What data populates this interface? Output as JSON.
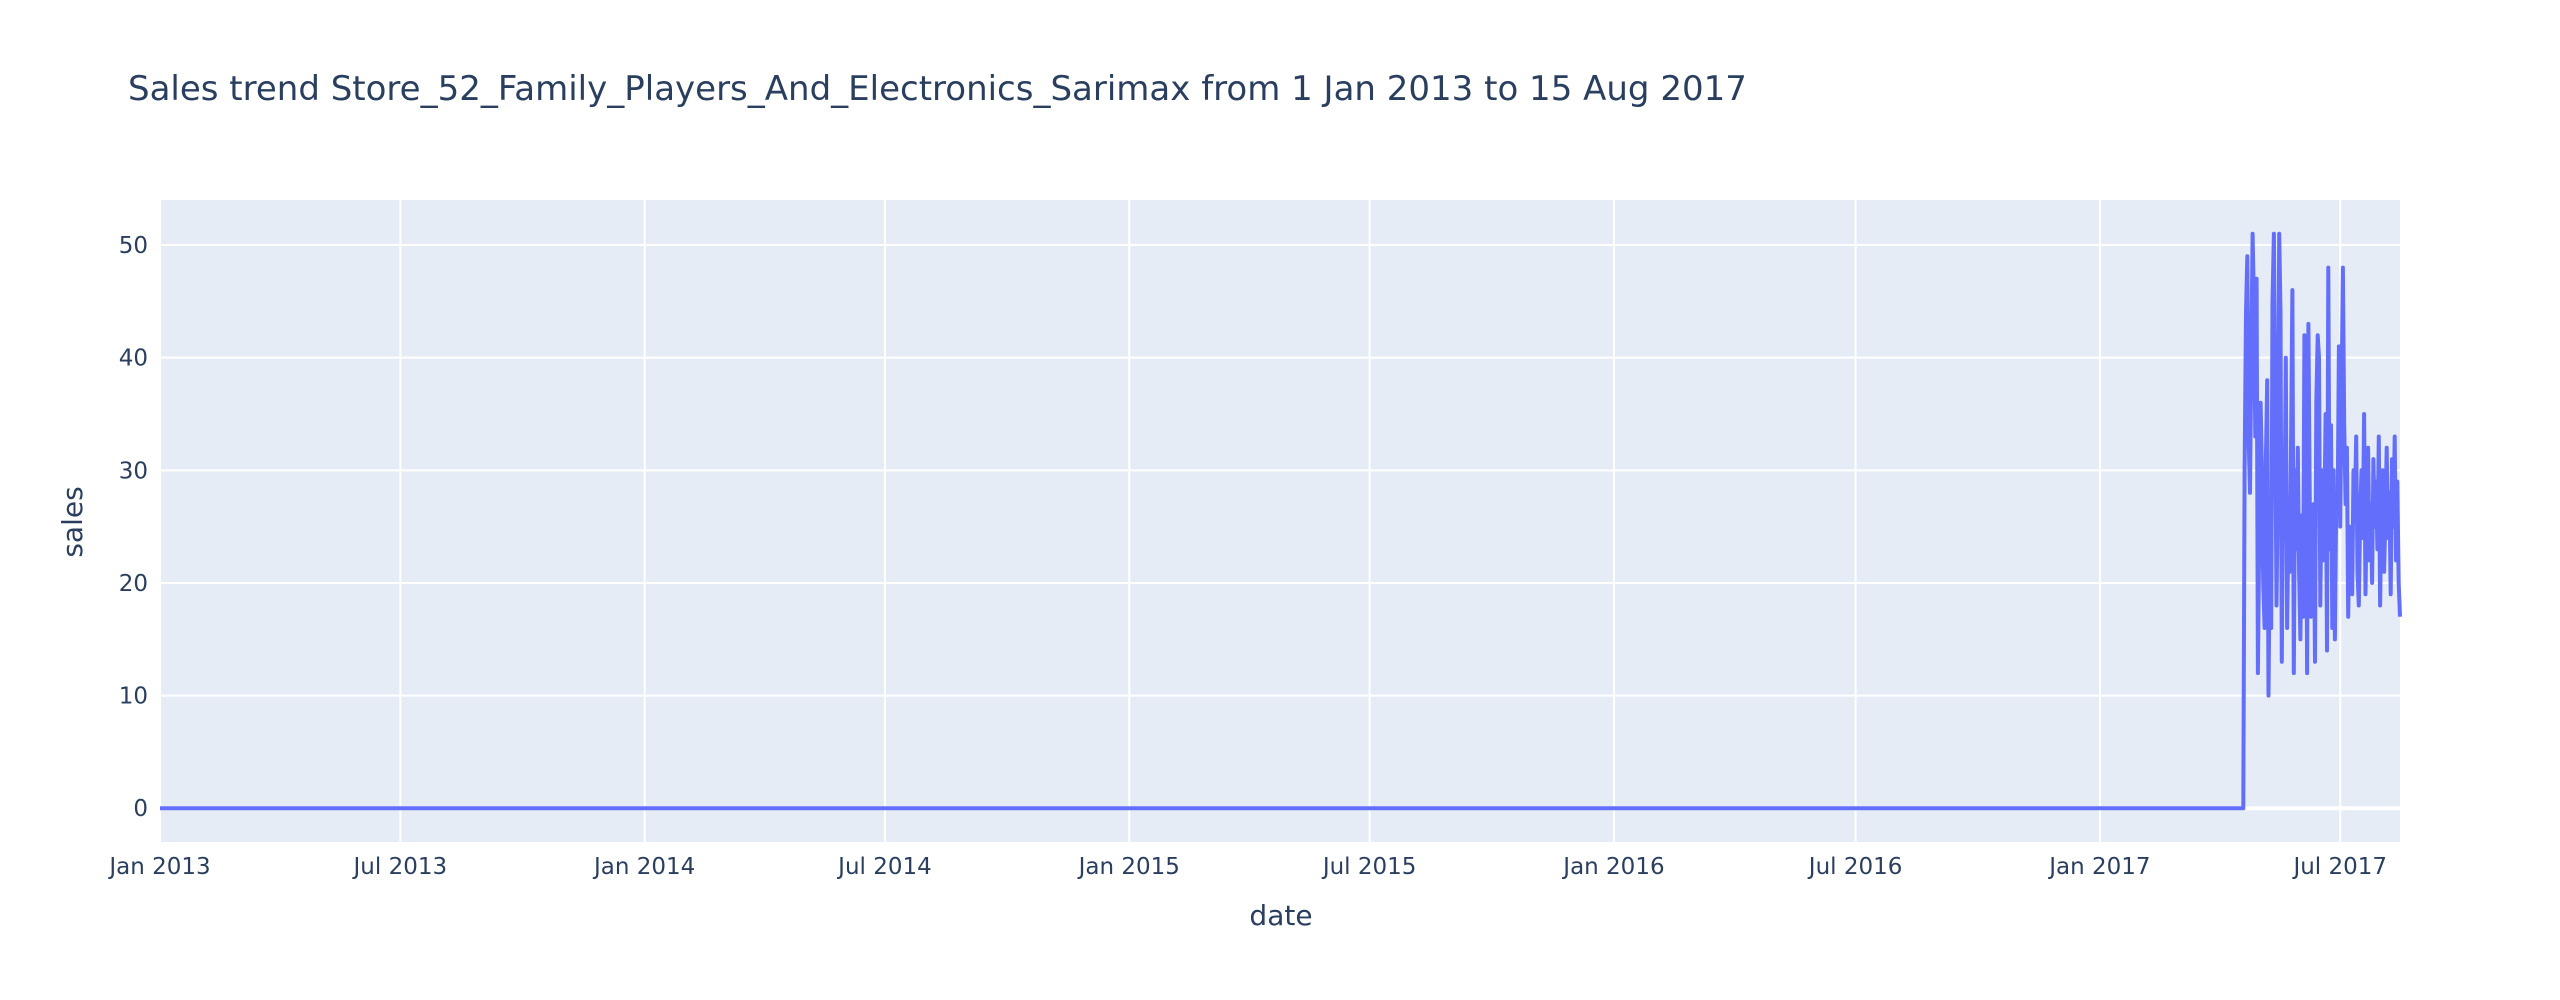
{
  "chart_data": {
    "type": "line",
    "title": "Sales trend Store_52_Family_Players_And_Electronics_Sarimax from  1 Jan 2013 to 15 Aug 2017",
    "xlabel": "date",
    "ylabel": "sales",
    "xlim": [
      "2013-01-01",
      "2017-08-15"
    ],
    "ylim": [
      -3,
      54
    ],
    "x_ticks": [
      {
        "date": "2013-01-01",
        "label": "Jan 2013"
      },
      {
        "date": "2013-07-01",
        "label": "Jul 2013"
      },
      {
        "date": "2014-01-01",
        "label": "Jan 2014"
      },
      {
        "date": "2014-07-01",
        "label": "Jul 2014"
      },
      {
        "date": "2015-01-01",
        "label": "Jan 2015"
      },
      {
        "date": "2015-07-01",
        "label": "Jul 2015"
      },
      {
        "date": "2016-01-01",
        "label": "Jan 2016"
      },
      {
        "date": "2016-07-01",
        "label": "Jul 2016"
      },
      {
        "date": "2017-01-01",
        "label": "Jan 2017"
      },
      {
        "date": "2017-07-01",
        "label": "Jul 2017"
      }
    ],
    "y_ticks": [
      0,
      10,
      20,
      30,
      40,
      50
    ],
    "grid": true,
    "colors": {
      "line": "#636efa",
      "plot_bg": "#e5ecf6",
      "grid": "#ffffff",
      "text": "#2a3f5f"
    },
    "series": [
      {
        "x": [
          "2013-01-01",
          "2017-04-19",
          "2017-04-20",
          "2017-04-21",
          "2017-04-22",
          "2017-04-23",
          "2017-04-24",
          "2017-04-25",
          "2017-04-26",
          "2017-04-27",
          "2017-04-28",
          "2017-04-29",
          "2017-04-30",
          "2017-05-01",
          "2017-05-02",
          "2017-05-03",
          "2017-05-04",
          "2017-05-05",
          "2017-05-06",
          "2017-05-07",
          "2017-05-08",
          "2017-05-09",
          "2017-05-10",
          "2017-05-11",
          "2017-05-12",
          "2017-05-13",
          "2017-05-14",
          "2017-05-15",
          "2017-05-16",
          "2017-05-17",
          "2017-05-18",
          "2017-05-19",
          "2017-05-20",
          "2017-05-21",
          "2017-05-22",
          "2017-05-23",
          "2017-05-24",
          "2017-05-25",
          "2017-05-26",
          "2017-05-27",
          "2017-05-28",
          "2017-05-29",
          "2017-05-30",
          "2017-05-31",
          "2017-06-01",
          "2017-06-02",
          "2017-06-03",
          "2017-06-04",
          "2017-06-05",
          "2017-06-06",
          "2017-06-07",
          "2017-06-08",
          "2017-06-09",
          "2017-06-10",
          "2017-06-11",
          "2017-06-12",
          "2017-06-13",
          "2017-06-14",
          "2017-06-15",
          "2017-06-16",
          "2017-06-17",
          "2017-06-18",
          "2017-06-19",
          "2017-06-20",
          "2017-06-21",
          "2017-06-22",
          "2017-06-23",
          "2017-06-24",
          "2017-06-25",
          "2017-06-26",
          "2017-06-27",
          "2017-06-28",
          "2017-06-29",
          "2017-06-30",
          "2017-07-01",
          "2017-07-02",
          "2017-07-03",
          "2017-07-04",
          "2017-07-05",
          "2017-07-06",
          "2017-07-07",
          "2017-07-08",
          "2017-07-09",
          "2017-07-10",
          "2017-07-11",
          "2017-07-12",
          "2017-07-13",
          "2017-07-14",
          "2017-07-15",
          "2017-07-16",
          "2017-07-17",
          "2017-07-18",
          "2017-07-19",
          "2017-07-20",
          "2017-07-21",
          "2017-07-22",
          "2017-07-23",
          "2017-07-24",
          "2017-07-25",
          "2017-07-26",
          "2017-07-27",
          "2017-07-28",
          "2017-07-29",
          "2017-07-30",
          "2017-07-31",
          "2017-08-01",
          "2017-08-02",
          "2017-08-03",
          "2017-08-04",
          "2017-08-05",
          "2017-08-06",
          "2017-08-07",
          "2017-08-08",
          "2017-08-09",
          "2017-08-10",
          "2017-08-11",
          "2017-08-12",
          "2017-08-13",
          "2017-08-14",
          "2017-08-15"
        ],
        "y": [
          0,
          0,
          30,
          44,
          49,
          33,
          28,
          40,
          51,
          45,
          33,
          47,
          12,
          25,
          36,
          30,
          20,
          16,
          31,
          38,
          10,
          24,
          16,
          45,
          51,
          35,
          18,
          28,
          51,
          44,
          13,
          31,
          26,
          40,
          16,
          25,
          21,
          33,
          46,
          12,
          30,
          23,
          32,
          21,
          15,
          26,
          17,
          42,
          38,
          12,
          43,
          28,
          17,
          19,
          27,
          13,
          36,
          42,
          40,
          18,
          30,
          22,
          25,
          35,
          14,
          48,
          23,
          34,
          16,
          30,
          15,
          28,
          26,
          41,
          25,
          37,
          48,
          34,
          27,
          32,
          17,
          25,
          22,
          19,
          30,
          27,
          33,
          21,
          18,
          26,
          30,
          24,
          35,
          19,
          28,
          32,
          22,
          27,
          20,
          31,
          25,
          29,
          23,
          33,
          18,
          27,
          30,
          21,
          26,
          32,
          24,
          28,
          19,
          31,
          25,
          33,
          22,
          29,
          20,
          17
        ]
      }
    ]
  }
}
